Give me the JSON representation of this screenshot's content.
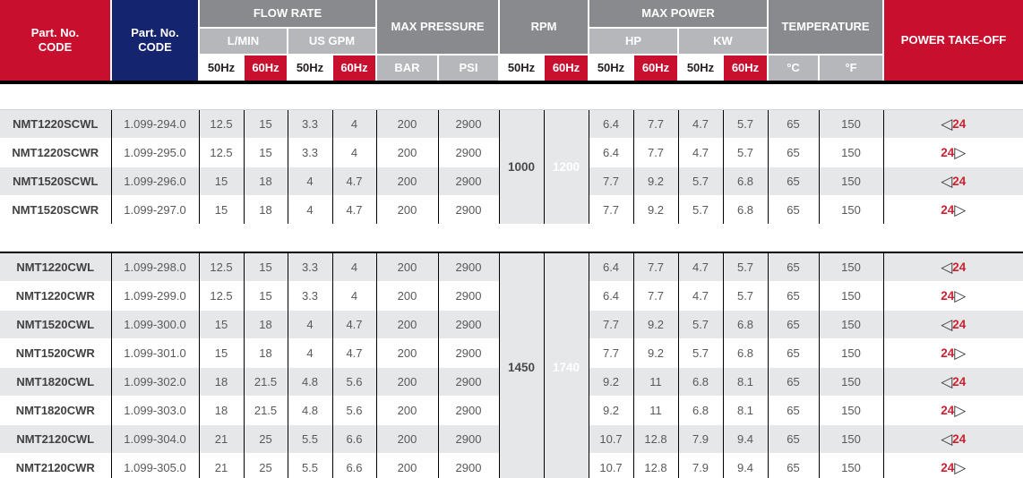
{
  "header": {
    "part_no": "Part. No.\nCODE",
    "flow_rate": "FLOW RATE",
    "l_min": "L/MIN",
    "us_gpm": "US GPM",
    "max_pressure": "MAX PRESSURE",
    "bar": "BAR",
    "psi": "PSI",
    "rpm": "RPM",
    "max_power": "MAX POWER",
    "hp": "HP",
    "kw": "KW",
    "temperature": "TEMPERATURE",
    "celsius": "°C",
    "fahrenheit": "°F",
    "power_take_off": "POWER TAKE-OFF",
    "hz50": "50Hz",
    "hz60": "60Hz"
  },
  "icons": {
    "pto_left": "◁",
    "pto_right": "▷"
  },
  "colors": {
    "red": "#C8102E",
    "navy": "#14246E",
    "gray_dark": "#898A8D",
    "gray_light": "#B5B7BA",
    "rpm50_bg": "#FC5D6C",
    "rpm60_bg": "#FC3A4F",
    "row_alt": "#E6E7E8",
    "pto_red": "#CE2130",
    "cell_text": "#58595B",
    "model_text": "#414042"
  },
  "groups": [
    {
      "rpm50": "1000",
      "rpm60": "1200",
      "rows": [
        {
          "model": "NMT1220SCWL",
          "code": "1.099-294.0",
          "flow_lmin_50": "12.5",
          "flow_lmin_60": "15",
          "flow_gpm_50": "3.3",
          "flow_gpm_60": "4",
          "bar": "200",
          "psi": "2900",
          "hp50": "6.4",
          "hp60": "7.7",
          "kw50": "4.7",
          "kw60": "5.7",
          "temp_c": "65",
          "temp_f": "150",
          "pto": "24",
          "pto_side": "left"
        },
        {
          "model": "NMT1220SCWR",
          "code": "1.099-295.0",
          "flow_lmin_50": "12.5",
          "flow_lmin_60": "15",
          "flow_gpm_50": "3.3",
          "flow_gpm_60": "4",
          "bar": "200",
          "psi": "2900",
          "hp50": "6.4",
          "hp60": "7.7",
          "kw50": "4.7",
          "kw60": "5.7",
          "temp_c": "65",
          "temp_f": "150",
          "pto": "24",
          "pto_side": "right"
        },
        {
          "model": "NMT1520SCWL",
          "code": "1.099-296.0",
          "flow_lmin_50": "15",
          "flow_lmin_60": "18",
          "flow_gpm_50": "4",
          "flow_gpm_60": "4.7",
          "bar": "200",
          "psi": "2900",
          "hp50": "7.7",
          "hp60": "9.2",
          "kw50": "5.7",
          "kw60": "6.8",
          "temp_c": "65",
          "temp_f": "150",
          "pto": "24",
          "pto_side": "left"
        },
        {
          "model": "NMT1520SCWR",
          "code": "1.099-297.0",
          "flow_lmin_50": "15",
          "flow_lmin_60": "18",
          "flow_gpm_50": "4",
          "flow_gpm_60": "4.7",
          "bar": "200",
          "psi": "2900",
          "hp50": "7.7",
          "hp60": "9.2",
          "kw50": "5.7",
          "kw60": "6.8",
          "temp_c": "65",
          "temp_f": "150",
          "pto": "24",
          "pto_side": "right"
        }
      ]
    },
    {
      "rpm50": "1450",
      "rpm60": "1740",
      "rows": [
        {
          "model": "NMT1220CWL",
          "code": "1.099-298.0",
          "flow_lmin_50": "12.5",
          "flow_lmin_60": "15",
          "flow_gpm_50": "3.3",
          "flow_gpm_60": "4",
          "bar": "200",
          "psi": "2900",
          "hp50": "6.4",
          "hp60": "7.7",
          "kw50": "4.7",
          "kw60": "5.7",
          "temp_c": "65",
          "temp_f": "150",
          "pto": "24",
          "pto_side": "left"
        },
        {
          "model": "NMT1220CWR",
          "code": "1.099-299.0",
          "flow_lmin_50": "12.5",
          "flow_lmin_60": "15",
          "flow_gpm_50": "3.3",
          "flow_gpm_60": "4",
          "bar": "200",
          "psi": "2900",
          "hp50": "6.4",
          "hp60": "7.7",
          "kw50": "4.7",
          "kw60": "5.7",
          "temp_c": "65",
          "temp_f": "150",
          "pto": "24",
          "pto_side": "right"
        },
        {
          "model": "NMT1520CWL",
          "code": "1.099-300.0",
          "flow_lmin_50": "15",
          "flow_lmin_60": "18",
          "flow_gpm_50": "4",
          "flow_gpm_60": "4.7",
          "bar": "200",
          "psi": "2900",
          "hp50": "7.7",
          "hp60": "9.2",
          "kw50": "5.7",
          "kw60": "6.8",
          "temp_c": "65",
          "temp_f": "150",
          "pto": "24",
          "pto_side": "left"
        },
        {
          "model": "NMT1520CWR",
          "code": "1.099-301.0",
          "flow_lmin_50": "15",
          "flow_lmin_60": "18",
          "flow_gpm_50": "4",
          "flow_gpm_60": "4.7",
          "bar": "200",
          "psi": "2900",
          "hp50": "7.7",
          "hp60": "9.2",
          "kw50": "5.7",
          "kw60": "6.8",
          "temp_c": "65",
          "temp_f": "150",
          "pto": "24",
          "pto_side": "right"
        },
        {
          "model": "NMT1820CWL",
          "code": "1.099-302.0",
          "flow_lmin_50": "18",
          "flow_lmin_60": "21.5",
          "flow_gpm_50": "4.8",
          "flow_gpm_60": "5.6",
          "bar": "200",
          "psi": "2900",
          "hp50": "9.2",
          "hp60": "11",
          "kw50": "6.8",
          "kw60": "8.1",
          "temp_c": "65",
          "temp_f": "150",
          "pto": "24",
          "pto_side": "left"
        },
        {
          "model": "NMT1820CWR",
          "code": "1.099-303.0",
          "flow_lmin_50": "18",
          "flow_lmin_60": "21.5",
          "flow_gpm_50": "4.8",
          "flow_gpm_60": "5.6",
          "bar": "200",
          "psi": "2900",
          "hp50": "9.2",
          "hp60": "11",
          "kw50": "6.8",
          "kw60": "8.1",
          "temp_c": "65",
          "temp_f": "150",
          "pto": "24",
          "pto_side": "right"
        },
        {
          "model": "NMT2120CWL",
          "code": "1.099-304.0",
          "flow_lmin_50": "21",
          "flow_lmin_60": "25",
          "flow_gpm_50": "5.5",
          "flow_gpm_60": "6.6",
          "bar": "200",
          "psi": "2900",
          "hp50": "10.7",
          "hp60": "12.8",
          "kw50": "7.9",
          "kw60": "9.4",
          "temp_c": "65",
          "temp_f": "150",
          "pto": "24",
          "pto_side": "left"
        },
        {
          "model": "NMT2120CWR",
          "code": "1.099-305.0",
          "flow_lmin_50": "21",
          "flow_lmin_60": "25",
          "flow_gpm_50": "5.5",
          "flow_gpm_60": "6.6",
          "bar": "200",
          "psi": "2900",
          "hp50": "10.7",
          "hp60": "12.8",
          "kw50": "7.9",
          "kw60": "9.4",
          "temp_c": "65",
          "temp_f": "150",
          "pto": "24",
          "pto_side": "right"
        }
      ]
    }
  ]
}
